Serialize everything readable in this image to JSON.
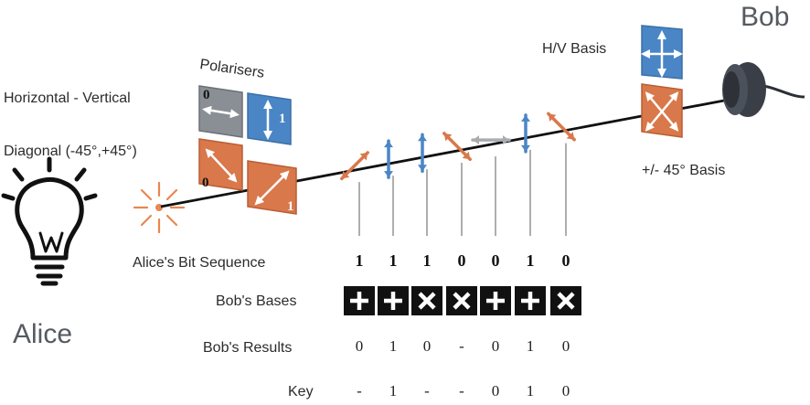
{
  "colors": {
    "hv": "#4a86c6",
    "diag": "#d9784a",
    "grey": "#8a8f95",
    "photon_grey": "#a9acaf",
    "cell": "#111111",
    "text": "#2b2b2b"
  },
  "labels": {
    "alice": "Alice",
    "bob": "Bob",
    "polarisers": "Polarisers",
    "hv_row": "Horizontal - Vertical",
    "diag_row": "Diagonal (-45°,+45°)",
    "hv_basis": "H/V Basis",
    "diag_basis": "+/- 45° Basis",
    "alice_bits_label": "Alice's Bit Sequence",
    "bob_bases_label": "Bob's Bases",
    "bob_results_label": "Bob's Results",
    "key_label": "Key"
  },
  "polariser_tiles": [
    {
      "name": "horizontal-tile",
      "icon": "horizontal-arrow",
      "number": "0",
      "color": "grey"
    },
    {
      "name": "vertical-tile",
      "icon": "vertical-arrow",
      "number": "1",
      "color": "hv"
    },
    {
      "name": "minus45-tile",
      "icon": "diagonal-nw-se-arrow",
      "number": "0",
      "color": "diag"
    },
    {
      "name": "plus45-tile",
      "icon": "diagonal-sw-ne-arrow",
      "number": "1",
      "color": "diag"
    }
  ],
  "photons": [
    {
      "pol": "ne",
      "color": "diag"
    },
    {
      "pol": "v",
      "color": "hv"
    },
    {
      "pol": "v",
      "color": "hv"
    },
    {
      "pol": "nw",
      "color": "diag"
    },
    {
      "pol": "h",
      "color": "photon_grey"
    },
    {
      "pol": "v",
      "color": "hv"
    },
    {
      "pol": "nw",
      "color": "diag"
    }
  ],
  "alice_bits": [
    "1",
    "1",
    "1",
    "0",
    "0",
    "1",
    "0"
  ],
  "bob_bases": [
    "+",
    "+",
    "×",
    "×",
    "+",
    "+",
    "×"
  ],
  "bob_results": [
    "0",
    "1",
    "0",
    "-",
    "0",
    "1",
    "0"
  ],
  "key": [
    "-",
    "1",
    "-",
    "-",
    "0",
    "1",
    "0"
  ]
}
